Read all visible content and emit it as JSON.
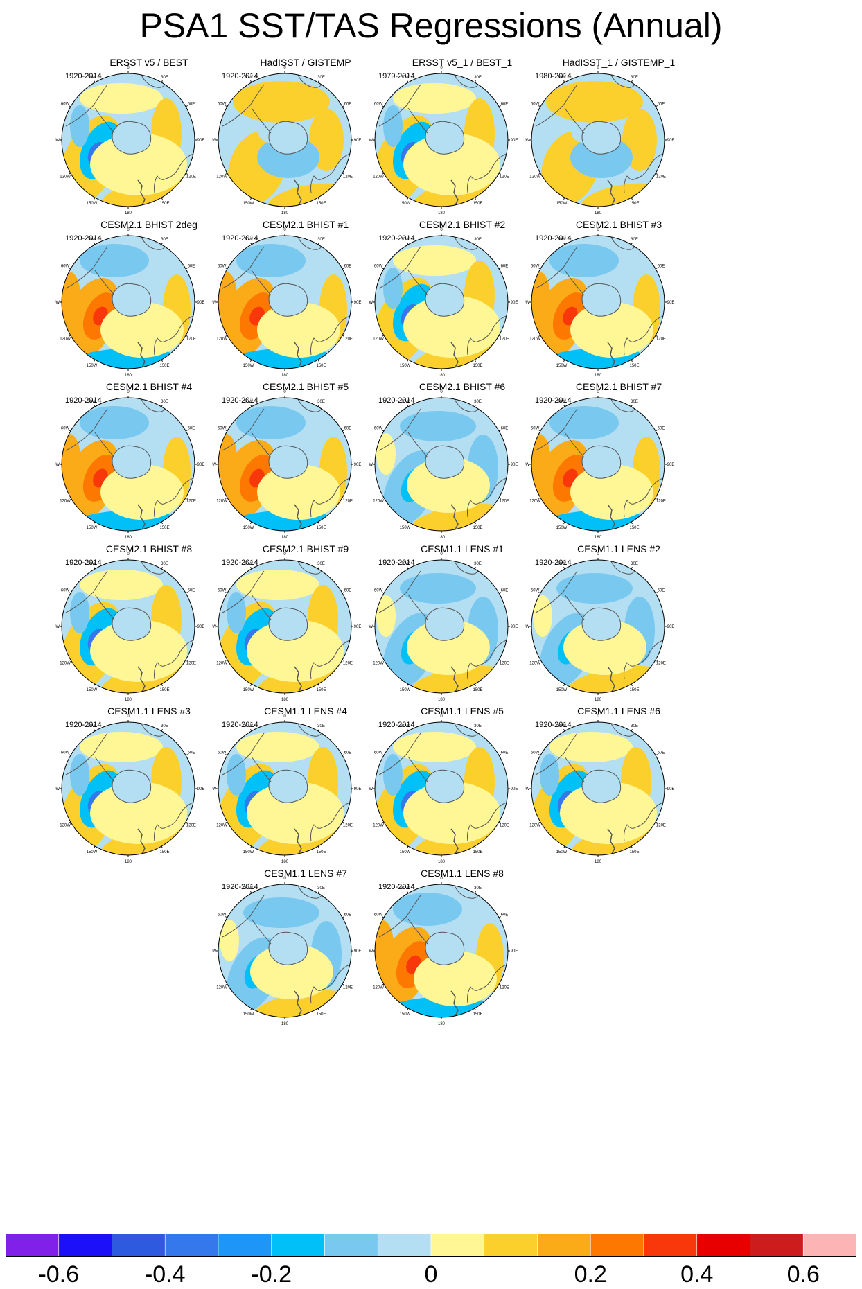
{
  "figure": {
    "title": "PSA1 SST/TAS Regressions (Annual)"
  },
  "map_labels": {
    "lon_0": "0",
    "lon_30e": "30E",
    "lon_60e": "60E",
    "lon_90e": "90E",
    "lon_120e": "120E",
    "lon_150e": "150E",
    "lon_180": "180",
    "lon_150w": "150W",
    "lon_120w": "120W",
    "lon_90w": "90W",
    "lon_60w": "60W",
    "lon_30w": "30W"
  },
  "panels": [
    {
      "title": "ERSST v5 / BEST",
      "years": "1920-2014",
      "pattern": "a"
    },
    {
      "title": "HadISST / GISTEMP",
      "years": "1920-2014",
      "pattern": "c"
    },
    {
      "title": "ERSST v5_1 / BEST_1",
      "years": "1979-2014",
      "pattern": "a"
    },
    {
      "title": "HadISST_1 / GISTEMP_1",
      "years": "1980-2014",
      "pattern": "c"
    },
    {
      "title": "CESM2.1 BHIST 2deg",
      "years": "1920-2014",
      "pattern": "b"
    },
    {
      "title": "CESM2.1 BHIST #1",
      "years": "1920-2014",
      "pattern": "b"
    },
    {
      "title": "CESM2.1 BHIST #2",
      "years": "1920-2014",
      "pattern": "a"
    },
    {
      "title": "CESM2.1 BHIST #3",
      "years": "1920-2014",
      "pattern": "b"
    },
    {
      "title": "CESM2.1 BHIST #4",
      "years": "1920-2014",
      "pattern": "b"
    },
    {
      "title": "CESM2.1 BHIST #5",
      "years": "1920-2014",
      "pattern": "b"
    },
    {
      "title": "CESM2.1 BHIST #6",
      "years": "1920-2014",
      "pattern": "d"
    },
    {
      "title": "CESM2.1 BHIST #7",
      "years": "1920-2014",
      "pattern": "b"
    },
    {
      "title": "CESM2.1 BHIST #8",
      "years": "1920-2014",
      "pattern": "a"
    },
    {
      "title": "CESM2.1 BHIST #9",
      "years": "1920-2014",
      "pattern": "a"
    },
    {
      "title": "CESM1.1 LENS #1",
      "years": "1920-2014",
      "pattern": "d"
    },
    {
      "title": "CESM1.1 LENS #2",
      "years": "1920-2014",
      "pattern": "d"
    },
    {
      "title": "CESM1.1 LENS #3",
      "years": "1920-2014",
      "pattern": "a"
    },
    {
      "title": "CESM1.1 LENS #4",
      "years": "1920-2014",
      "pattern": "a"
    },
    {
      "title": "CESM1.1 LENS #5",
      "years": "1920-2014",
      "pattern": "a"
    },
    {
      "title": "CESM1.1 LENS #6",
      "years": "1920-2014",
      "pattern": "a"
    },
    {
      "title": "CESM1.1 LENS #7",
      "years": "1920-2014",
      "pattern": "d"
    },
    {
      "title": "CESM1.1 LENS #8",
      "years": "1920-2014",
      "pattern": "b"
    }
  ],
  "colorbar": {
    "colors": [
      "#8020e8",
      "#1c10f8",
      "#2e5ae0",
      "#3478ec",
      "#1e96f8",
      "#00c0f8",
      "#78c8f0",
      "#b4def2",
      "#fff796",
      "#fcd02c",
      "#fcab18",
      "#fc7800",
      "#f8380a",
      "#e80000",
      "#cc1c1c",
      "#fcb4b4"
    ],
    "labels": [
      "-0.6",
      "-0.4",
      "-0.2",
      "0",
      "0.2",
      "0.4",
      "0.6"
    ],
    "label_values": [
      -0.6,
      -0.4,
      -0.2,
      0,
      0.2,
      0.4,
      0.6
    ],
    "levels": [
      -0.7,
      -0.6,
      -0.5,
      -0.4,
      -0.3,
      -0.2,
      -0.1,
      -0.05,
      0,
      0.05,
      0.1,
      0.2,
      0.3,
      0.4,
      0.5,
      0.6,
      0.7
    ]
  },
  "chart_data": {
    "type": "map",
    "projection": "south polar stereographic",
    "grid": false,
    "colorbar_range": [
      -0.7,
      0.7
    ]
  }
}
